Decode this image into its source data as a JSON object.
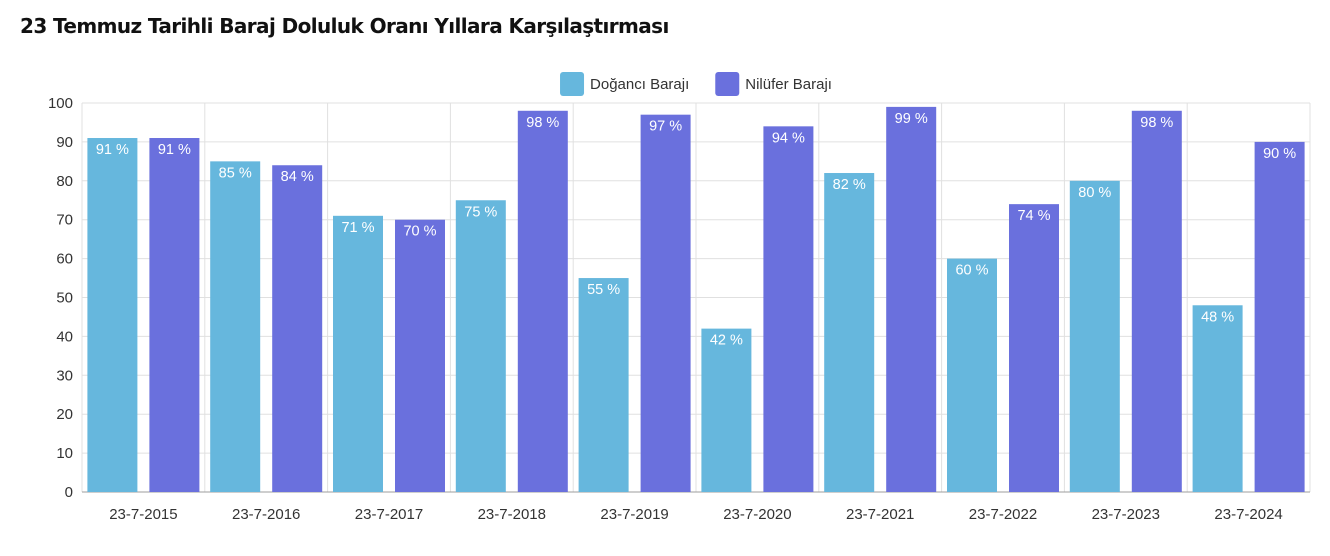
{
  "chart_data": {
    "type": "bar",
    "title": "23 Temmuz Tarihli Baraj Doluluk Oranı Yıllara Karşılaştırması",
    "categories": [
      "23-7-2015",
      "23-7-2016",
      "23-7-2017",
      "23-7-2018",
      "23-7-2019",
      "23-7-2020",
      "23-7-2021",
      "23-7-2022",
      "23-7-2023",
      "23-7-2024"
    ],
    "series": [
      {
        "name": "Doğancı Barajı",
        "color": "#66b7dd",
        "values": [
          91,
          85,
          71,
          75,
          55,
          42,
          82,
          60,
          80,
          48
        ]
      },
      {
        "name": "Nilüfer Barajı",
        "color": "#6a70dd",
        "values": [
          91,
          84,
          70,
          98,
          97,
          94,
          99,
          74,
          98,
          90
        ]
      }
    ],
    "value_suffix": " %",
    "ylim": [
      0,
      100
    ],
    "yticks": [
      0,
      10,
      20,
      30,
      40,
      50,
      60,
      70,
      80,
      90,
      100
    ],
    "grid": true,
    "legend_position": "top-center",
    "xlabel": "",
    "ylabel": ""
  }
}
